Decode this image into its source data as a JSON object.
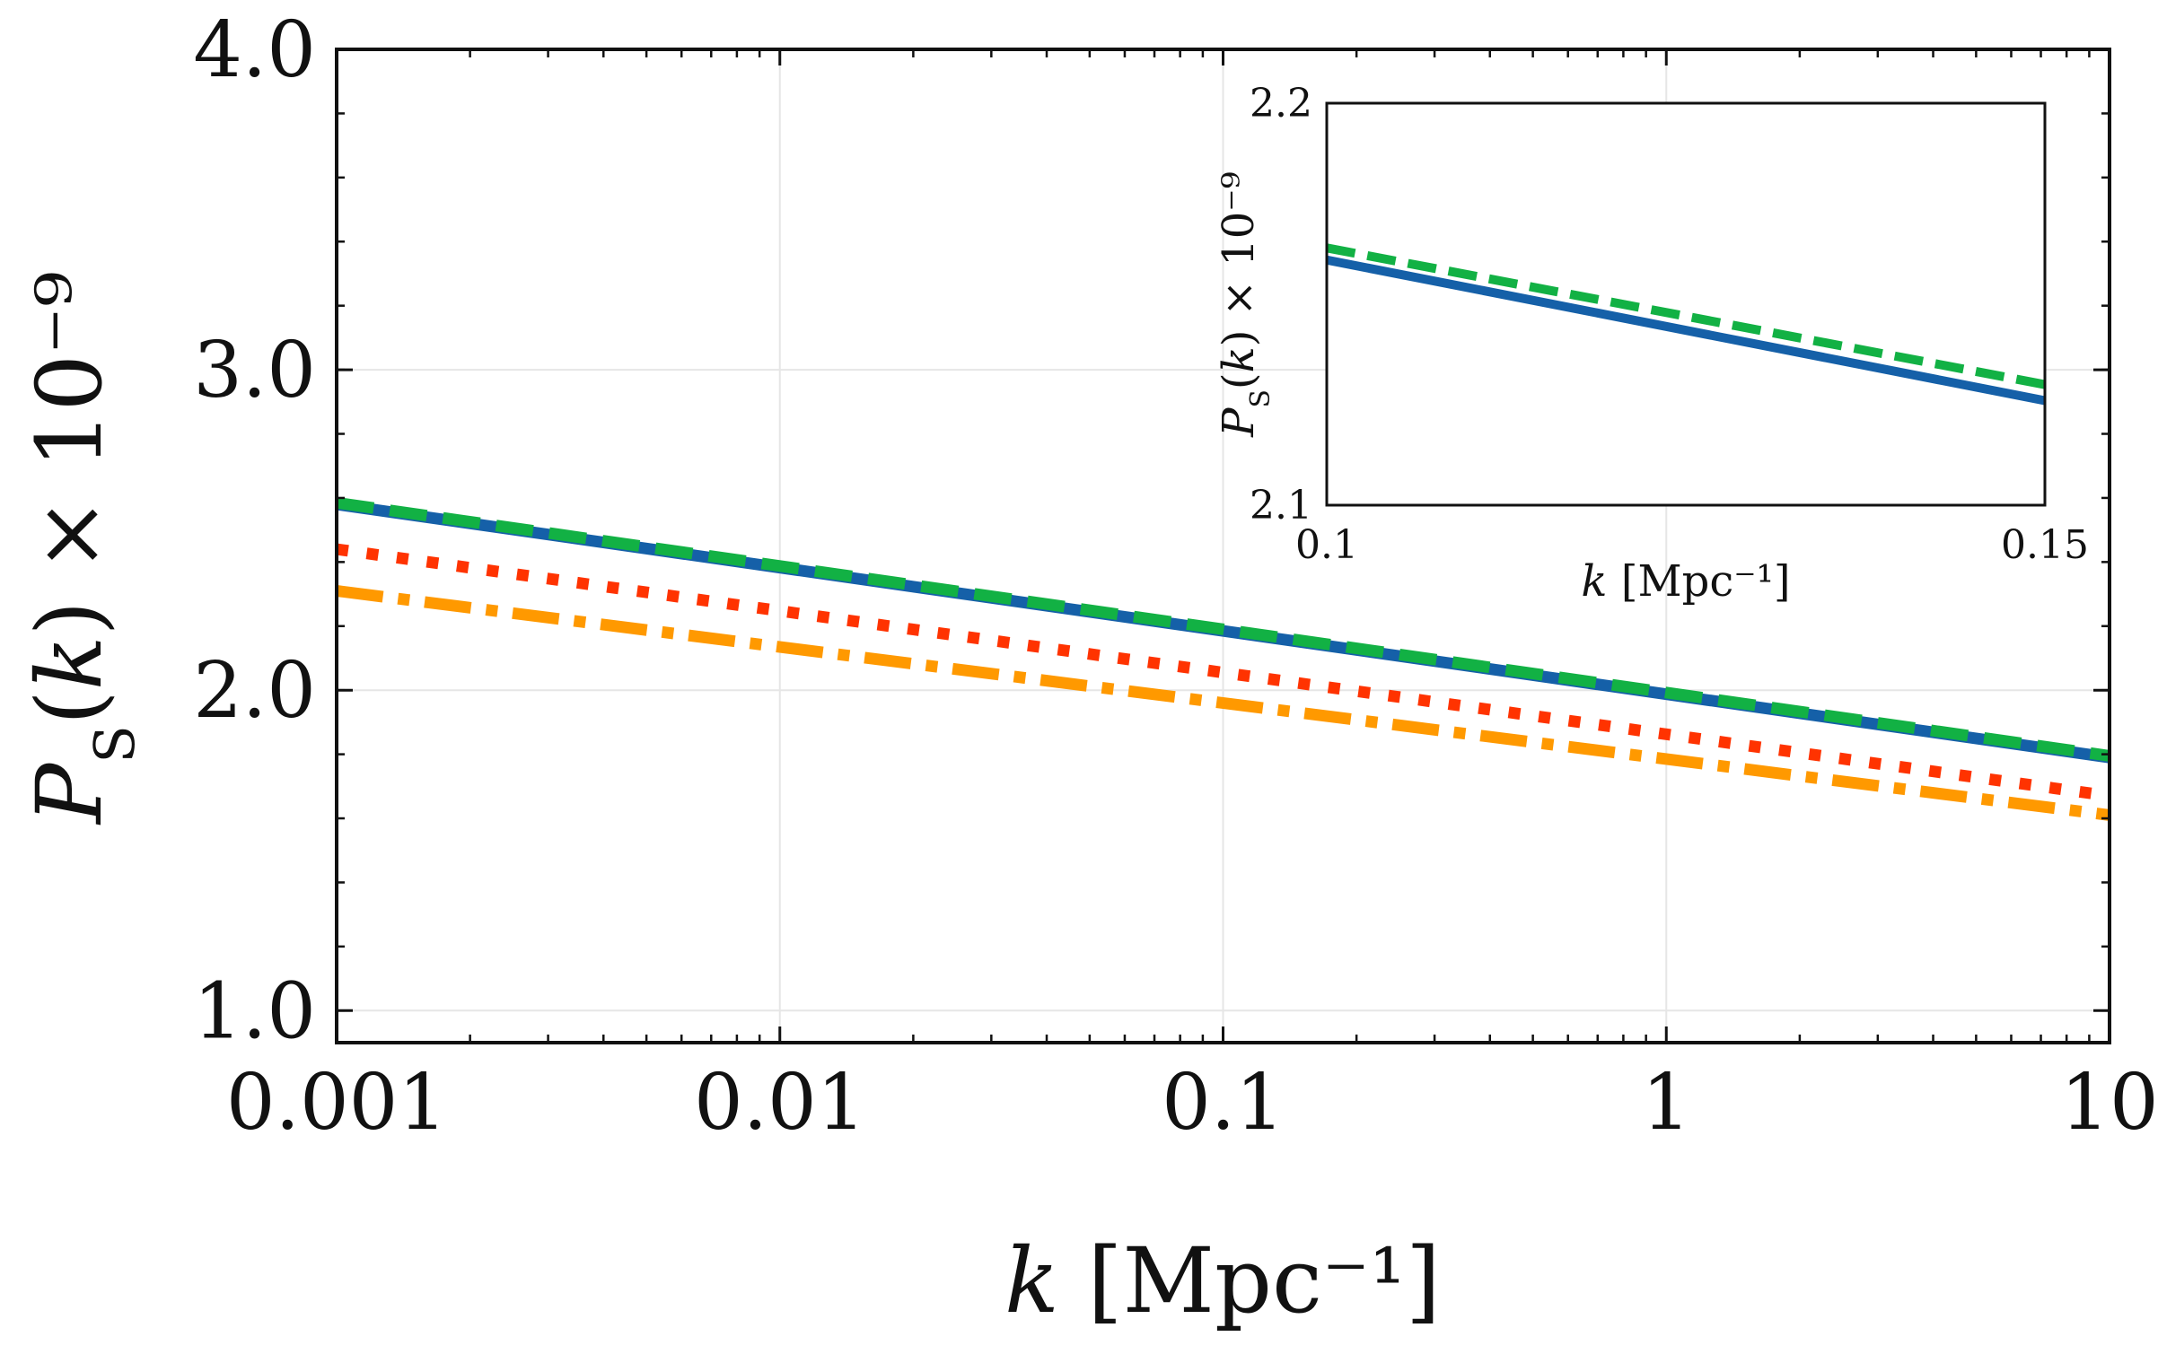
{
  "chart_data": [
    {
      "type": "line",
      "panel": "main",
      "xscale": "log",
      "xlim": [
        0.001,
        10
      ],
      "ylim": [
        0.9,
        4.0
      ],
      "x_ticks": [
        0.001,
        0.01,
        0.1,
        1,
        10
      ],
      "x_tick_labels": [
        "0.001",
        "0.01",
        "0.1",
        "1",
        "10"
      ],
      "y_ticks": [
        1.0,
        2.0,
        3.0,
        4.0
      ],
      "y_tick_labels": [
        "1.0",
        "2.0",
        "3.0",
        "4.0"
      ],
      "xlabel": "k [Mpc⁻¹]",
      "ylabel": "P_S(k) × 10⁻⁹",
      "grid": true,
      "legend": "none",
      "series": [
        {
          "style": "solid",
          "color": "#1560a8",
          "x": [
            0.001,
            10
          ],
          "y": [
            2.58,
            1.79
          ]
        },
        {
          "style": "dashed",
          "color": "#12b144",
          "x": [
            0.001,
            10
          ],
          "y": [
            2.585,
            1.795
          ]
        },
        {
          "style": "dotted",
          "color": "#ff3300",
          "x": [
            0.001,
            10
          ],
          "y": [
            2.44,
            1.67
          ]
        },
        {
          "style": "dashdot",
          "color": "#ff9900",
          "x": [
            0.001,
            10
          ],
          "y": [
            2.31,
            1.61
          ]
        }
      ]
    },
    {
      "type": "line",
      "panel": "inset",
      "xscale": "linear",
      "xlim": [
        0.1,
        0.15
      ],
      "ylim": [
        2.1,
        2.2
      ],
      "x_ticks": [
        0.1,
        0.15
      ],
      "x_tick_labels": [
        "0.1",
        "0.15"
      ],
      "y_ticks": [
        2.1,
        2.2
      ],
      "y_tick_labels": [
        "2.1",
        "2.2"
      ],
      "xlabel": "k [Mpc⁻¹]",
      "ylabel": "P_S(k) × 10⁻⁹",
      "grid": false,
      "series": [
        {
          "style": "solid",
          "color": "#1560a8",
          "x": [
            0.1,
            0.15
          ],
          "y": [
            2.161,
            2.126
          ]
        },
        {
          "style": "dashed",
          "color": "#12b144",
          "x": [
            0.1,
            0.15
          ],
          "y": [
            2.164,
            2.13
          ]
        }
      ]
    }
  ]
}
